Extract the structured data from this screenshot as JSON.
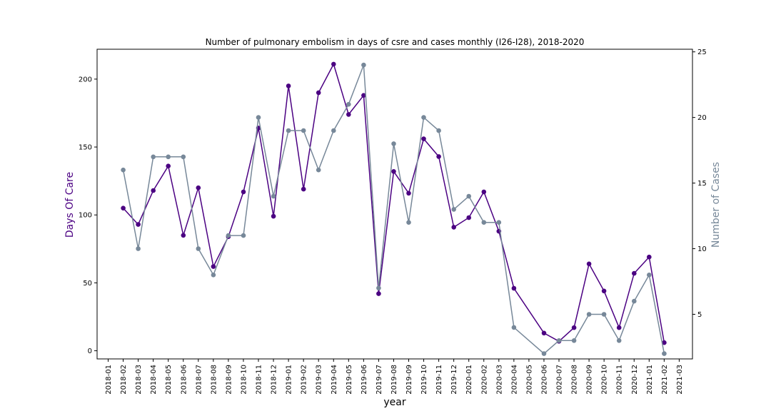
{
  "chart_data": {
    "type": "line",
    "title": "Number of pulmonary embolism in days of csre and cases monthly (I26-I28), 2018-2020",
    "xlabel": "year",
    "ylabel_left": "Days Of Care",
    "ylabel_right": "Number of Cases",
    "x_ticks": [
      "2018-01",
      "2018-02",
      "2018-03",
      "2018-04",
      "2018-05",
      "2018-06",
      "2018-07",
      "2018-08",
      "2018-09",
      "2018-10",
      "2018-11",
      "2018-12",
      "2019-01",
      "2019-02",
      "2019-03",
      "2019-04",
      "2019-05",
      "2019-06",
      "2019-07",
      "2019-08",
      "2019-09",
      "2019-10",
      "2019-11",
      "2019-12",
      "2020-01",
      "2020-02",
      "2020-03",
      "2020-04",
      "2020-05",
      "2020-06",
      "2020-07",
      "2020-08",
      "2020-09",
      "2020-10",
      "2020-11",
      "2020-12",
      "2021-01",
      "2021-02",
      "2021-03"
    ],
    "y_left_ticks": [
      0,
      50,
      100,
      150,
      200
    ],
    "y_right_ticks": [
      5,
      10,
      15,
      20,
      25
    ],
    "ylim_left": [
      -6,
      222
    ],
    "ylim_right": [
      1.6,
      25.2
    ],
    "grid": false,
    "series": [
      {
        "axis": "left",
        "color": "#4b0082",
        "points": [
          {
            "x": "2018-02",
            "y": 105
          },
          {
            "x": "2018-03",
            "y": 93
          },
          {
            "x": "2018-04",
            "y": 118
          },
          {
            "x": "2018-05",
            "y": 136
          },
          {
            "x": "2018-06",
            "y": 85
          },
          {
            "x": "2018-07",
            "y": 120
          },
          {
            "x": "2018-08",
            "y": 62
          },
          {
            "x": "2018-09",
            "y": 84
          },
          {
            "x": "2018-10",
            "y": 117
          },
          {
            "x": "2018-11",
            "y": 164
          },
          {
            "x": "2018-12",
            "y": 99
          },
          {
            "x": "2019-01",
            "y": 195
          },
          {
            "x": "2019-02",
            "y": 119
          },
          {
            "x": "2019-03",
            "y": 190
          },
          {
            "x": "2019-04",
            "y": 211
          },
          {
            "x": "2019-05",
            "y": 174
          },
          {
            "x": "2019-06",
            "y": 188
          },
          {
            "x": "2019-07",
            "y": 42
          },
          {
            "x": "2019-08",
            "y": 132
          },
          {
            "x": "2019-09",
            "y": 116
          },
          {
            "x": "2019-10",
            "y": 156
          },
          {
            "x": "2019-11",
            "y": 143
          },
          {
            "x": "2019-12",
            "y": 91
          },
          {
            "x": "2020-01",
            "y": 98
          },
          {
            "x": "2020-02",
            "y": 117
          },
          {
            "x": "2020-03",
            "y": 88
          },
          {
            "x": "2020-04",
            "y": 46
          },
          {
            "x": "2020-06",
            "y": 13
          },
          {
            "x": "2020-07",
            "y": 7
          },
          {
            "x": "2020-08",
            "y": 17
          },
          {
            "x": "2020-09",
            "y": 64
          },
          {
            "x": "2020-10",
            "y": 44
          },
          {
            "x": "2020-11",
            "y": 17
          },
          {
            "x": "2020-12",
            "y": 57
          },
          {
            "x": "2021-01",
            "y": 69
          },
          {
            "x": "2021-02",
            "y": 6
          }
        ]
      },
      {
        "axis": "right",
        "color": "#778899",
        "points": [
          {
            "x": "2018-02",
            "y": 16
          },
          {
            "x": "2018-03",
            "y": 10
          },
          {
            "x": "2018-04",
            "y": 17
          },
          {
            "x": "2018-05",
            "y": 17
          },
          {
            "x": "2018-06",
            "y": 17
          },
          {
            "x": "2018-07",
            "y": 10
          },
          {
            "x": "2018-08",
            "y": 8
          },
          {
            "x": "2018-09",
            "y": 11
          },
          {
            "x": "2018-10",
            "y": 11
          },
          {
            "x": "2018-11",
            "y": 20
          },
          {
            "x": "2018-12",
            "y": 14
          },
          {
            "x": "2019-01",
            "y": 19
          },
          {
            "x": "2019-02",
            "y": 19
          },
          {
            "x": "2019-03",
            "y": 16
          },
          {
            "x": "2019-04",
            "y": 19
          },
          {
            "x": "2019-05",
            "y": 21
          },
          {
            "x": "2019-06",
            "y": 24
          },
          {
            "x": "2019-07",
            "y": 7
          },
          {
            "x": "2019-08",
            "y": 18
          },
          {
            "x": "2019-09",
            "y": 12
          },
          {
            "x": "2019-10",
            "y": 20
          },
          {
            "x": "2019-11",
            "y": 19
          },
          {
            "x": "2019-12",
            "y": 13
          },
          {
            "x": "2020-01",
            "y": 14
          },
          {
            "x": "2020-02",
            "y": 12
          },
          {
            "x": "2020-03",
            "y": 12
          },
          {
            "x": "2020-04",
            "y": 4
          },
          {
            "x": "2020-06",
            "y": 2
          },
          {
            "x": "2020-07",
            "y": 3
          },
          {
            "x": "2020-08",
            "y": 3
          },
          {
            "x": "2020-09",
            "y": 5
          },
          {
            "x": "2020-10",
            "y": 5
          },
          {
            "x": "2020-11",
            "y": 3
          },
          {
            "x": "2020-12",
            "y": 6
          },
          {
            "x": "2021-01",
            "y": 8
          },
          {
            "x": "2021-02",
            "y": 2
          }
        ]
      }
    ]
  }
}
